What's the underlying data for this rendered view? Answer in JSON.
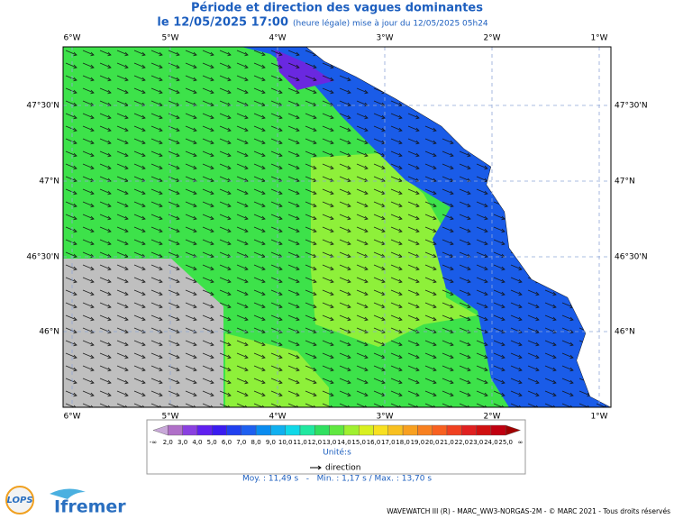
{
  "header": {
    "title": "Période et direction des vagues dominantes",
    "date": "le 12/05/2025 17:00",
    "subtitle": "(heure légale) mise à jour du 12/05/2025 05h24"
  },
  "map": {
    "lon_labels": [
      "6°W",
      "5°W",
      "4°W",
      "3°W",
      "2°W",
      "1°W"
    ],
    "lat_labels": [
      "47°30'N",
      "47°N",
      "46°30'N",
      "46°N"
    ]
  },
  "legend": {
    "labels": [
      "-∞",
      "2,0",
      "3,0",
      "4,0",
      "5,0",
      "6,0",
      "7,0",
      "8,0",
      "9,0",
      "10,0",
      "11,0",
      "12,0",
      "13,0",
      "14,0",
      "15,0",
      "16,0",
      "17,0",
      "18,0",
      "19,0",
      "20,0",
      "21,0",
      "22,0",
      "23,0",
      "24,0",
      "25,0",
      "∞"
    ],
    "colors": [
      "#c8a8d8",
      "#b070c8",
      "#8a40e0",
      "#6020f0",
      "#3a1cf0",
      "#2040f0",
      "#1e60f0",
      "#0a8cf0",
      "#10b0f0",
      "#10d8e8",
      "#20e8a0",
      "#30e060",
      "#60e840",
      "#a0f030",
      "#d8f020",
      "#f8e020",
      "#f8c020",
      "#f8a020",
      "#f88020",
      "#f86020",
      "#f04020",
      "#e02020",
      "#d01010",
      "#c00010",
      "#a00000"
    ],
    "unit": "Unité:s",
    "direction": "direction"
  },
  "stats": "Moy. : 11,49 s   -   Min. : 1,17 s / Max. : 13,70 s",
  "footer": "WAVEWATCH III (R) - MARC_WW3-NORGAS-2M - © MARC 2021 - Tous droits réservés",
  "logos": [
    "LOPS",
    "Ifremer"
  ]
}
